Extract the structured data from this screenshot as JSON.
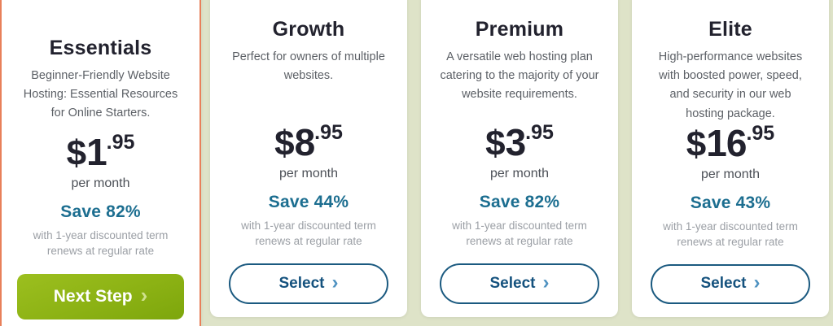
{
  "page": {
    "background_color": "#dee3c8",
    "highlight_border_color": "#e8805a",
    "save_text_color": "#1c6e90",
    "select_button_color": "#15527e",
    "next_step_button_color": "#8cb214"
  },
  "plans": [
    {
      "name": "Essentials",
      "description": "Beginner-Friendly Website Hosting: Essential Resources for Online Starters.",
      "currency": "$",
      "price_whole": "1",
      "price_cents": ".95",
      "period": "per month",
      "save_label": "Save 82%",
      "terms_line1": "with 1-year discounted term",
      "terms_line2": "renews at regular rate",
      "cta_label": "Next Step",
      "cta_chevron": "›",
      "highlighted": true
    },
    {
      "name": "Growth",
      "description": "Perfect for owners of multiple websites.",
      "currency": "$",
      "price_whole": "8",
      "price_cents": ".95",
      "period": "per month",
      "save_label": "Save 44%",
      "terms_line1": "with 1-year discounted term",
      "terms_line2": "renews at regular rate",
      "cta_label": "Select",
      "cta_chevron": "›",
      "highlighted": false
    },
    {
      "name": "Premium",
      "description": "A versatile web hosting plan catering to the majority of your website requirements.",
      "currency": "$",
      "price_whole": "3",
      "price_cents": ".95",
      "period": "per month",
      "save_label": "Save 82%",
      "terms_line1": "with 1-year discounted term",
      "terms_line2": "renews at regular rate",
      "cta_label": "Select",
      "cta_chevron": "›",
      "highlighted": false
    },
    {
      "name": "Elite",
      "description": "High-performance websites with boosted power, speed, and security in our web hosting package.",
      "currency": "$",
      "price_whole": "16",
      "price_cents": ".95",
      "period": "per month",
      "save_label": "Save 43%",
      "terms_line1": "with 1-year discounted term",
      "terms_line2": "renews at regular rate",
      "cta_label": "Select",
      "cta_chevron": "›",
      "highlighted": false
    }
  ]
}
